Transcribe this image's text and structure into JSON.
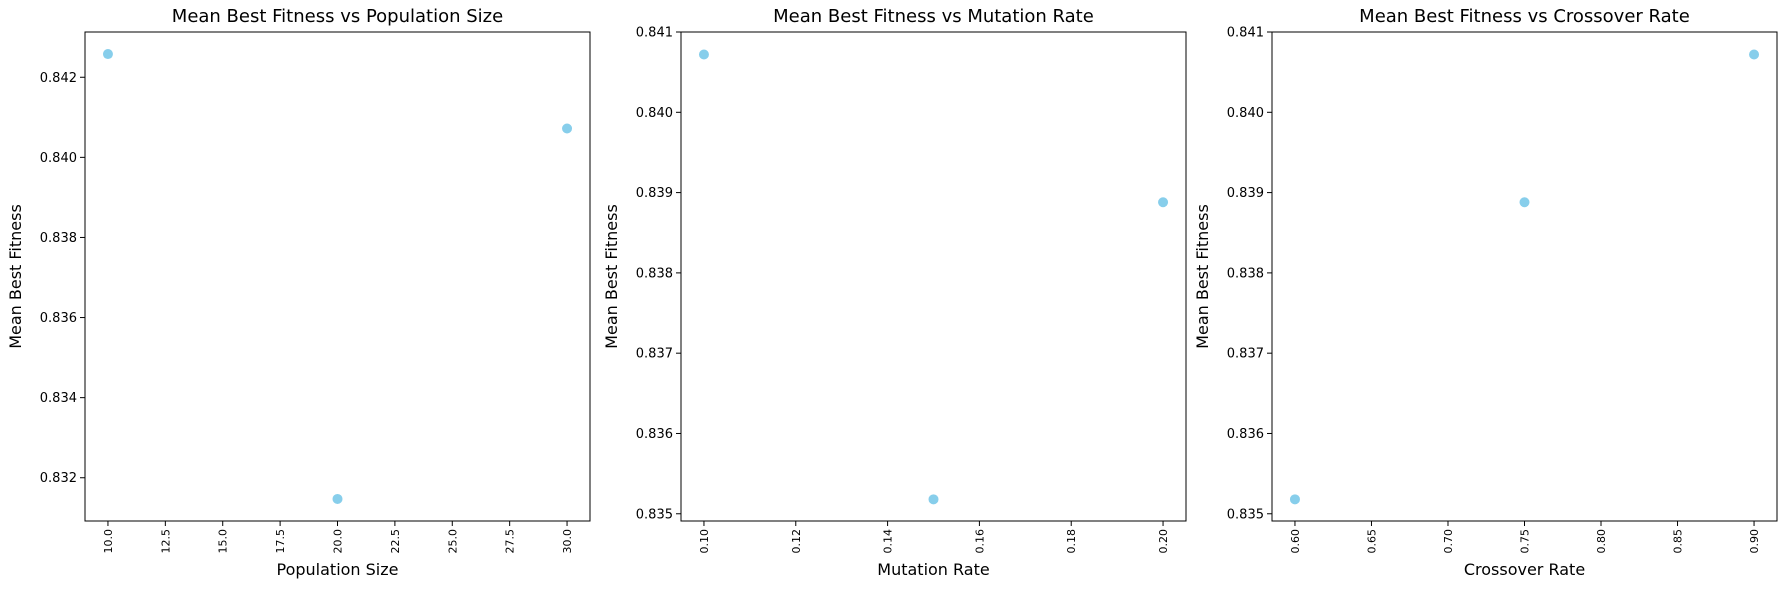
{
  "chart_data": [
    {
      "type": "scatter",
      "title": "Mean Best Fitness vs Population Size",
      "xlabel": "Population Size",
      "ylabel": "Mean Best Fitness",
      "x": [
        10,
        20,
        30
      ],
      "y": [
        0.84258,
        0.83147,
        0.84072
      ],
      "xlim": [
        9.0,
        31.0
      ],
      "ylim": [
        0.83092,
        0.84313
      ],
      "xticks": [
        10.0,
        12.5,
        15.0,
        17.5,
        20.0,
        22.5,
        25.0,
        27.5,
        30.0
      ],
      "xtick_labels": [
        "10.0",
        "12.5",
        "15.0",
        "17.5",
        "20.0",
        "22.5",
        "25.0",
        "27.5",
        "30.0"
      ],
      "yticks": [
        0.832,
        0.834,
        0.836,
        0.838,
        0.84,
        0.842
      ],
      "ytick_labels": [
        "0.832",
        "0.834",
        "0.836",
        "0.838",
        "0.840",
        "0.842"
      ],
      "grid": false,
      "color": "#87CEEB"
    },
    {
      "type": "scatter",
      "title": "Mean Best Fitness vs Mutation Rate",
      "xlabel": "Mutation Rate",
      "ylabel": "Mean Best Fitness",
      "x": [
        0.1,
        0.15,
        0.2
      ],
      "y": [
        0.84072,
        0.83518,
        0.83888
      ],
      "xlim": [
        0.095,
        0.205
      ],
      "ylim": [
        0.83491,
        0.841
      ],
      "xticks": [
        0.1,
        0.12,
        0.14,
        0.16,
        0.18,
        0.2
      ],
      "xtick_labels": [
        "0.10",
        "0.12",
        "0.14",
        "0.16",
        "0.18",
        "0.20"
      ],
      "yticks": [
        0.835,
        0.836,
        0.837,
        0.838,
        0.839,
        0.84,
        0.841
      ],
      "ytick_labels": [
        "0.835",
        "0.836",
        "0.837",
        "0.838",
        "0.839",
        "0.840",
        "0.841"
      ],
      "grid": false,
      "color": "#87CEEB"
    },
    {
      "type": "scatter",
      "title": "Mean Best Fitness vs Crossover Rate",
      "xlabel": "Crossover Rate",
      "ylabel": "Mean Best Fitness",
      "x": [
        0.6,
        0.75,
        0.9
      ],
      "y": [
        0.83518,
        0.83888,
        0.84072
      ],
      "xlim": [
        0.585,
        0.915
      ],
      "ylim": [
        0.83491,
        0.841
      ],
      "xticks": [
        0.6,
        0.65,
        0.7,
        0.75,
        0.8,
        0.85,
        0.9
      ],
      "xtick_labels": [
        "0.60",
        "0.65",
        "0.70",
        "0.75",
        "0.80",
        "0.85",
        "0.90"
      ],
      "yticks": [
        0.835,
        0.836,
        0.837,
        0.838,
        0.839,
        0.84,
        0.841
      ],
      "ytick_labels": [
        "0.835",
        "0.836",
        "0.837",
        "0.838",
        "0.839",
        "0.840",
        "0.841"
      ],
      "grid": false,
      "color": "#87CEEB"
    }
  ]
}
